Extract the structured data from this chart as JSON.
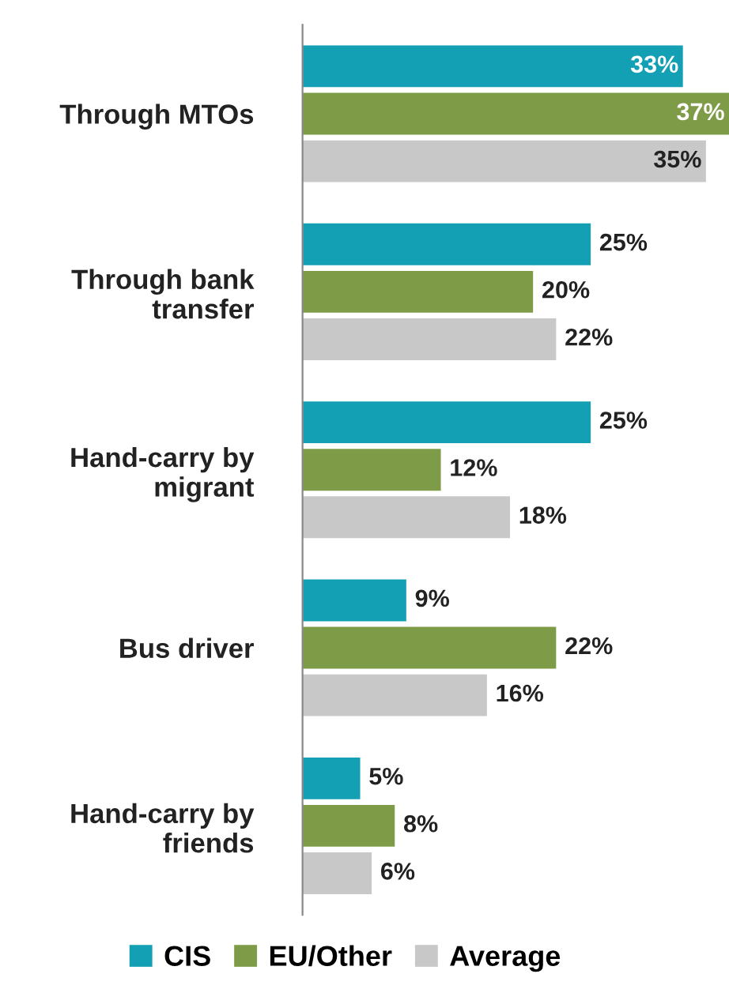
{
  "chart_data": {
    "type": "bar",
    "orientation": "horizontal",
    "categories": [
      "Through MTOs",
      "Through bank transfer",
      "Hand-carry by migrant",
      "Bus driver",
      "Hand-carry by friends"
    ],
    "series": [
      {
        "name": "CIS",
        "color": "#14a0b4",
        "values": [
          33,
          25,
          25,
          9,
          5
        ],
        "value_labels": [
          "33%",
          "25%",
          "25%",
          "9%",
          "5%"
        ]
      },
      {
        "name": "EU/Other",
        "color": "#7e9b47",
        "values": [
          37,
          20,
          12,
          22,
          8
        ],
        "value_labels": [
          "37%",
          "20%",
          "12%",
          "22%",
          "8%"
        ]
      },
      {
        "name": "Average",
        "color": "#c8c8c8",
        "values": [
          35,
          22,
          18,
          16,
          6
        ],
        "value_labels": [
          "35%",
          "22%",
          "18%",
          "16%",
          "6%"
        ]
      }
    ],
    "legend": "bottom",
    "grid": false
  }
}
